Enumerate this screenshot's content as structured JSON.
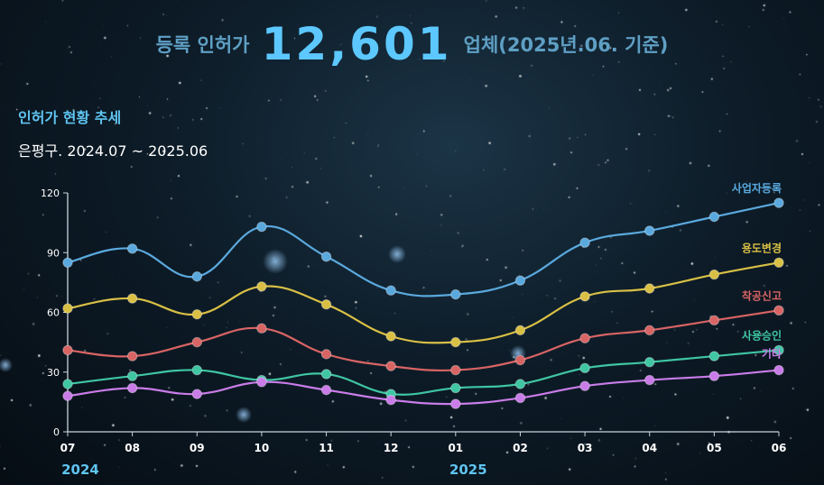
{
  "headline": {
    "prefix": "등록 인허가",
    "count": "12,601",
    "suffix": "업체(2025년.06. 기준)"
  },
  "chart_data": {
    "type": "line",
    "title": "인허가 현황 추세",
    "subtitle": "은평구. 2024.07 ~ 2025.06",
    "categories": [
      "07",
      "08",
      "09",
      "10",
      "11",
      "12",
      "01",
      "02",
      "03",
      "04",
      "05",
      "06"
    ],
    "year_labels": [
      {
        "label": "2024",
        "category": "07"
      },
      {
        "label": "2025",
        "category": "01"
      }
    ],
    "ylim": [
      0,
      120
    ],
    "yticks": [
      0,
      30,
      60,
      90,
      120
    ],
    "grid": false,
    "smooth": true,
    "series": [
      {
        "name": "사업자등록",
        "color": "#5aa9de",
        "values": [
          85,
          92,
          78,
          103,
          88,
          71,
          69,
          76,
          95,
          101,
          108,
          115
        ]
      },
      {
        "name": "용도변경",
        "color": "#d9c045",
        "values": [
          62,
          67,
          59,
          73,
          64,
          48,
          45,
          51,
          68,
          72,
          79,
          85
        ]
      },
      {
        "name": "착공신고",
        "color": "#d86464",
        "values": [
          41,
          38,
          45,
          52,
          39,
          33,
          31,
          36,
          47,
          51,
          56,
          61
        ]
      },
      {
        "name": "사용승인",
        "color": "#3fc6a3",
        "values": [
          24,
          28,
          31,
          26,
          29,
          19,
          22,
          24,
          32,
          35,
          38,
          41
        ]
      },
      {
        "name": "기타",
        "color": "#c97ce8",
        "values": [
          18,
          22,
          19,
          25,
          21,
          16,
          14,
          17,
          23,
          26,
          28,
          31
        ]
      }
    ]
  }
}
